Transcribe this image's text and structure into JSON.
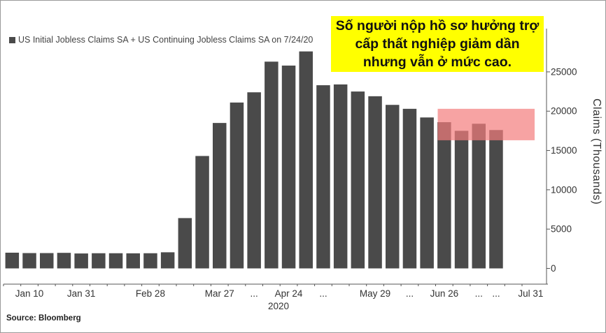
{
  "legend": {
    "label": "US Initial Jobless Claims SA + US Continuing Jobless Claims SA on 7/24/20",
    "color": "#4a4a4a"
  },
  "annotation": {
    "text": "Số người nộp hồ sơ hưởng trợ cấp thất nghiệp giảm dần nhưng vẫn ở mức cao.",
    "background": "#ffff00"
  },
  "source": {
    "text": "Source: Bloomberg"
  },
  "highlight": {
    "color": "#f47c7c",
    "y_from": 16300,
    "y_to": 20300,
    "x_from_index": 25,
    "x_to_index": 29
  },
  "chart_data": {
    "type": "bar",
    "x": [
      "2020-01-03",
      "2020-01-10",
      "2020-01-17",
      "2020-01-24",
      "2020-01-31",
      "2020-02-07",
      "2020-02-14",
      "2020-02-21",
      "2020-02-28",
      "2020-03-06",
      "2020-03-13",
      "2020-03-20",
      "2020-03-27",
      "2020-04-03",
      "2020-04-10",
      "2020-04-17",
      "2020-04-24",
      "2020-05-01",
      "2020-05-08",
      "2020-05-15",
      "2020-05-22",
      "2020-05-29",
      "2020-06-05",
      "2020-06-12",
      "2020-06-19",
      "2020-06-26",
      "2020-07-03",
      "2020-07-10",
      "2020-07-17",
      "2020-07-24"
    ],
    "values": [
      2000,
      1950,
      1950,
      1980,
      1900,
      1930,
      1930,
      1920,
      1930,
      2050,
      6400,
      14300,
      18500,
      21100,
      22400,
      26300,
      25800,
      27600,
      23300,
      23400,
      22500,
      21900,
      20800,
      20300,
      19200,
      18600,
      17500,
      18400,
      17600,
      0
    ],
    "ylabel": "Claims (Thousands)",
    "ylim": [
      -2000,
      30500
    ],
    "y_ticks": [
      0,
      5000,
      10000,
      15000,
      20000,
      25000
    ],
    "x_ticks": [
      {
        "label": "Jan 10",
        "index": 1
      },
      {
        "label": "Jan 31",
        "index": 4
      },
      {
        "label": "Feb 28",
        "index": 8
      },
      {
        "label": "Mar 27",
        "index": 12
      },
      {
        "label": "...",
        "index": 14
      },
      {
        "label": "Apr 24",
        "index": 16
      },
      {
        "label": "...",
        "index": 18
      },
      {
        "label": "May 29",
        "index": 21
      },
      {
        "label": "...",
        "index": 23
      },
      {
        "label": "Jun 26",
        "index": 25
      },
      {
        "label": "...",
        "index": 27
      },
      {
        "label": "...",
        "index": 28
      },
      {
        "label": "Jul 31",
        "index": 30
      }
    ],
    "year_label": "2020",
    "grid": false,
    "legend_position": "top-left"
  }
}
